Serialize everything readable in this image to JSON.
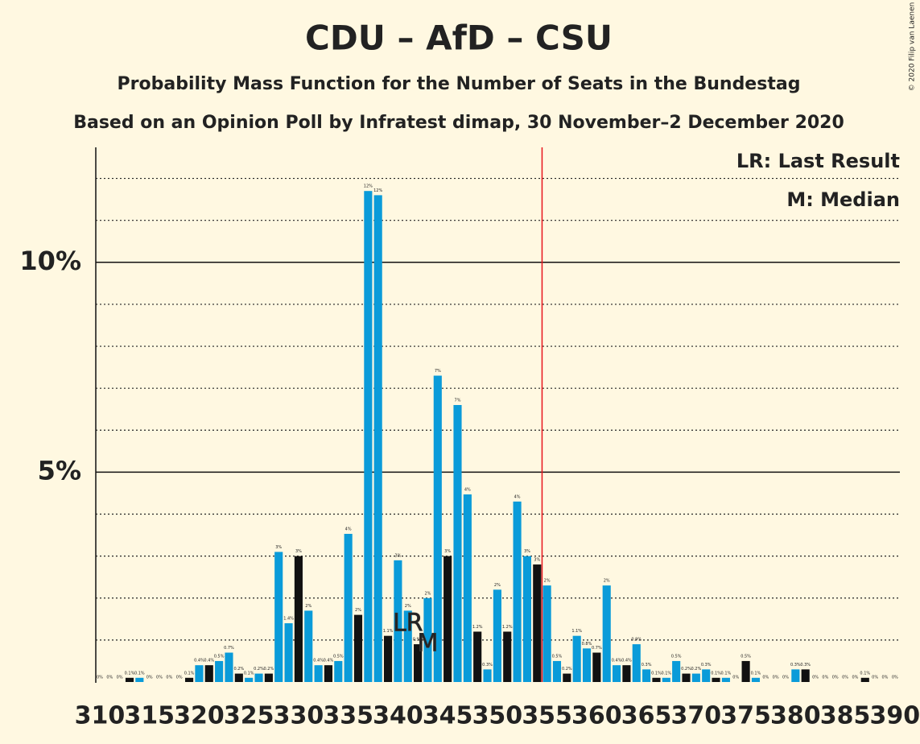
{
  "chart_data": {
    "type": "bar",
    "title": "CDU – AfD – CSU",
    "subtitle": "Probability Mass Function for the Number of Seats in the Bundestag",
    "subtitle2": "Based on an Opinion Poll by Infratest dimap, 30 November–2 December 2020",
    "copyright": "© 2020 Filip van Laenen",
    "legend_lr": "LR: Last Result",
    "legend_median": "M: Median",
    "last_result_label": "LR",
    "median_label": "M",
    "last_result": 341,
    "median": 343,
    "majority_line": 354.5,
    "majority_color": "#e8141b",
    "x": [
      310,
      311,
      312,
      313,
      314,
      315,
      316,
      317,
      318,
      319,
      320,
      321,
      322,
      323,
      324,
      325,
      326,
      327,
      328,
      329,
      330,
      331,
      332,
      333,
      334,
      335,
      336,
      337,
      338,
      339,
      340,
      341,
      342,
      343,
      344,
      345,
      346,
      347,
      348,
      349,
      350,
      351,
      352,
      353,
      354,
      355,
      356,
      357,
      358,
      359,
      360,
      361,
      362,
      363,
      364,
      365,
      366,
      367,
      368,
      369,
      370,
      371,
      372,
      373,
      374,
      375,
      376,
      377,
      378,
      379,
      380,
      381,
      382,
      383,
      384,
      385,
      386,
      387,
      388,
      389,
      390
    ],
    "values": [
      0,
      0,
      0,
      0.1,
      0.1,
      0,
      0,
      0,
      0,
      0.1,
      0.4,
      0.4,
      0.5,
      0.7,
      0.2,
      0.1,
      0.2,
      0.2,
      3.1,
      1.4,
      3.0,
      1.7,
      0.4,
      0.4,
      0.5,
      3.53,
      1.6,
      11.7,
      11.6,
      1.1,
      2.9,
      1.7,
      0.9,
      2.0,
      7.3,
      3.0,
      6.6,
      4.47,
      1.2,
      0.3,
      2.2,
      1.2,
      4.3,
      3.0,
      2.8,
      2.3,
      0.5,
      0.2,
      1.1,
      0.8,
      0.7,
      2.3,
      0.4,
      0.4,
      0.9,
      0.3,
      0.1,
      0.1,
      0.5,
      0.2,
      0.2,
      0.3,
      0.1,
      0.1,
      0,
      0.5,
      0.1,
      0,
      0,
      0,
      0.3,
      0.3,
      0,
      0,
      0,
      0,
      0,
      0.1,
      0,
      0,
      0
    ],
    "value_labels": [
      "0%",
      "0%",
      "0%",
      "0.1%",
      "0.1%",
      "0%",
      "0%",
      "0%",
      "0%",
      "0.1%",
      "0.4%",
      "0.4%",
      "0.5%",
      "0.7%",
      "0.2%",
      "0.1%",
      "0.2%",
      "0.2%",
      "3%",
      "1.4%",
      "3%",
      "2%",
      "0.4%",
      "0.4%",
      "0.5%",
      "4%",
      "2%",
      "12%",
      "12%",
      "1.1%",
      "3%",
      "2%",
      "0.9%",
      "2%",
      "7%",
      "3%",
      "7%",
      "4%",
      "1.2%",
      "0.3%",
      "2%",
      "1.2%",
      "4%",
      "3%",
      "3%",
      "2%",
      "0.5%",
      "0.2%",
      "1.1%",
      "0.8%",
      "0.7%",
      "2%",
      "0.4%",
      "0.4%",
      "0.9%",
      "0.3%",
      "0.1%",
      "0.1%",
      "0.5%",
      "0.2%",
      "0.2%",
      "0.3%",
      "0.1%",
      "0.1%",
      "0%",
      "0.5%",
      "0.1%",
      "0%",
      "0%",
      "0%",
      "0.3%",
      "0.3%",
      "0%",
      "0%",
      "0%",
      "0%",
      "0%",
      "0.1%",
      "0%",
      "0%",
      "0%"
    ],
    "colors": [
      "#111",
      "#0a9bd9",
      "#0a9bd9",
      "#111",
      "#0a9bd9",
      "#0a9bd9",
      "#111",
      "#0a9bd9",
      "#0a9bd9",
      "#111",
      "#0a9bd9",
      "#111",
      "#0a9bd9",
      "#0a9bd9",
      "#111",
      "#0a9bd9",
      "#0a9bd9",
      "#111",
      "#0a9bd9",
      "#0a9bd9",
      "#111",
      "#0a9bd9",
      "#0a9bd9",
      "#111",
      "#0a9bd9",
      "#0a9bd9",
      "#111",
      "#0a9bd9",
      "#0a9bd9",
      "#111",
      "#0a9bd9",
      "#0a9bd9",
      "#111",
      "#0a9bd9",
      "#0a9bd9",
      "#111",
      "#0a9bd9",
      "#0a9bd9",
      "#111",
      "#0a9bd9",
      "#0a9bd9",
      "#111",
      "#0a9bd9",
      "#0a9bd9",
      "#111",
      "#0a9bd9",
      "#0a9bd9",
      "#111",
      "#0a9bd9",
      "#0a9bd9",
      "#111",
      "#0a9bd9",
      "#0a9bd9",
      "#111",
      "#0a9bd9",
      "#0a9bd9",
      "#111",
      "#0a9bd9",
      "#0a9bd9",
      "#111",
      "#0a9bd9",
      "#0a9bd9",
      "#111",
      "#0a9bd9",
      "#0a9bd9",
      "#111",
      "#0a9bd9",
      "#0a9bd9",
      "#111",
      "#0a9bd9",
      "#0a9bd9",
      "#111",
      "#0a9bd9",
      "#0a9bd9",
      "#111",
      "#0a9bd9",
      "#0a9bd9",
      "#111",
      "#0a9bd9",
      "#0a9bd9",
      "#111"
    ],
    "xlim": [
      309.6,
      390.5
    ],
    "xticks": [
      310,
      315,
      320,
      325,
      330,
      335,
      340,
      345,
      350,
      355,
      360,
      365,
      370,
      375,
      380,
      385,
      390
    ],
    "ylim": [
      0,
      12.74
    ],
    "yticks": [
      {
        "value": 5,
        "label": "5%"
      },
      {
        "value": 10,
        "label": "10%"
      }
    ],
    "minor_yticks": [
      1,
      2,
      3,
      4,
      6,
      7,
      8,
      9,
      11,
      12
    ]
  }
}
